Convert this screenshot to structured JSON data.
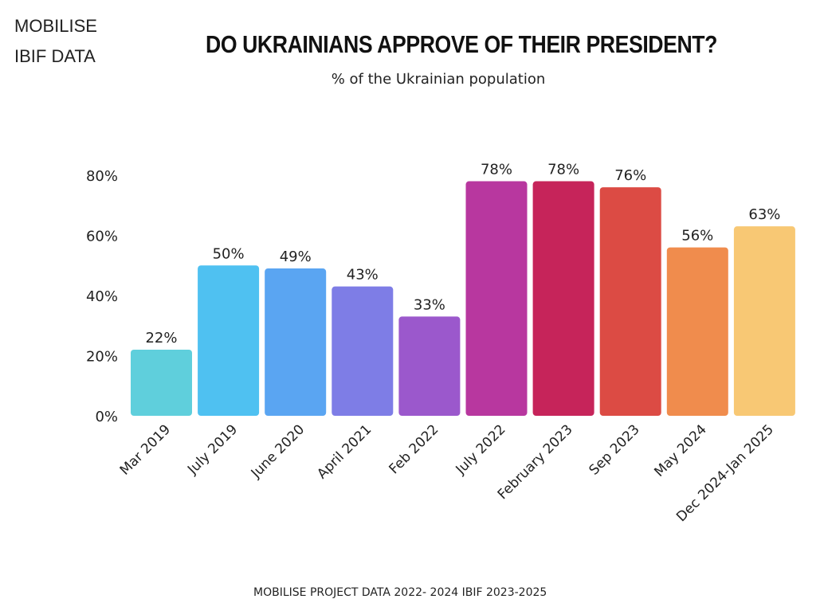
{
  "brand": {
    "line1": "MOBILISE",
    "line2": "IBIF DATA"
  },
  "footer": {
    "source": "MOBILISE PROJECT DATA 2022- 2024 IBIF 2023-2025"
  },
  "chart_data": {
    "type": "bar",
    "title": "DO UKRAINIANS APPROVE OF THEIR PRESIDENT?",
    "subtitle": "% of the Ukrainian population",
    "xlabel": "",
    "ylabel": "",
    "ylim": [
      0,
      80
    ],
    "yticks": [
      0,
      20,
      40,
      60,
      80
    ],
    "ytick_labels": [
      "0%",
      "20%",
      "40%",
      "60%",
      "80%"
    ],
    "grid": false,
    "legend": "none",
    "categories": [
      "Mar 2019",
      "July 2019",
      "June 2020",
      "April 2021",
      "Feb 2022",
      "July 2022",
      "February 2023",
      "Sep 2023",
      "May 2024",
      "Dec 2024-Jan 2025"
    ],
    "values": [
      22,
      50,
      49,
      43,
      33,
      78,
      78,
      76,
      56,
      63
    ],
    "value_labels": [
      "22%",
      "50%",
      "49%",
      "43%",
      "33%",
      "78%",
      "78%",
      "76%",
      "56%",
      "63%"
    ],
    "colors": [
      "#5fcfdc",
      "#4fc1f1",
      "#5aa5f2",
      "#7e7de6",
      "#9b58cc",
      "#b8379f",
      "#c6245a",
      "#dc4b44",
      "#f08c4d",
      "#f8c874"
    ]
  }
}
